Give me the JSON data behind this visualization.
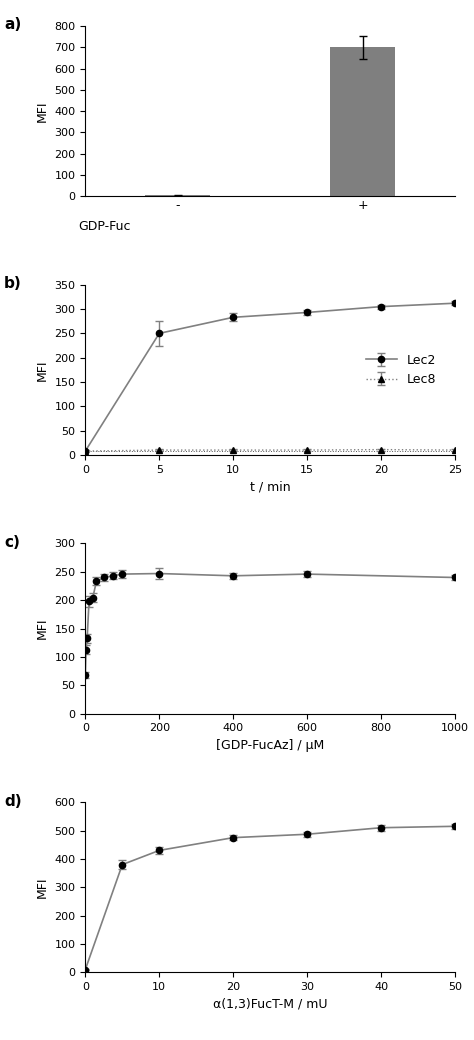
{
  "panel_a": {
    "categories": [
      "-",
      "+"
    ],
    "values": [
      5,
      700
    ],
    "errors": [
      2,
      55
    ],
    "bar_color": "#7f7f7f",
    "ylabel": "MFI",
    "xlabel_label": "GDP-Fuc",
    "ylim": [
      0,
      800
    ],
    "yticks": [
      0,
      100,
      200,
      300,
      400,
      500,
      600,
      700,
      800
    ],
    "bar_positions": [
      1,
      3
    ],
    "xlim": [
      0,
      4
    ]
  },
  "panel_b": {
    "lec2_x": [
      0,
      5,
      10,
      15,
      20,
      25
    ],
    "lec2_y": [
      8,
      250,
      283,
      293,
      305,
      312
    ],
    "lec2_err": [
      2,
      25,
      8,
      5,
      4,
      4
    ],
    "lec8_x": [
      0,
      5,
      10,
      15,
      20,
      25
    ],
    "lec8_y": [
      8,
      10,
      10,
      10,
      11,
      10
    ],
    "lec8_err": [
      2,
      2,
      2,
      2,
      2,
      2
    ],
    "ylabel": "MFI",
    "xlabel": "t / min",
    "ylim": [
      0,
      350
    ],
    "yticks": [
      0,
      50,
      100,
      150,
      200,
      250,
      300,
      350
    ],
    "xlim": [
      0,
      25
    ],
    "xticks": [
      0,
      5,
      10,
      15,
      20,
      25
    ],
    "line_color": "#808080",
    "marker_color": "#000000",
    "legend_labels": [
      "Lec2",
      "Lec8"
    ]
  },
  "panel_c": {
    "x": [
      0,
      2,
      5,
      10,
      20,
      30,
      50,
      75,
      100,
      200,
      400,
      600,
      1000
    ],
    "y": [
      68,
      113,
      133,
      198,
      204,
      233,
      240,
      243,
      246,
      247,
      243,
      246,
      240
    ],
    "err": [
      5,
      8,
      8,
      10,
      8,
      7,
      6,
      6,
      7,
      10,
      5,
      5,
      5
    ],
    "ylabel": "MFI",
    "xlabel": "[GDP-FucAz] / μM",
    "ylim": [
      0,
      300
    ],
    "yticks": [
      0,
      50,
      100,
      150,
      200,
      250,
      300
    ],
    "xlim": [
      0,
      1000
    ],
    "xticks": [
      0,
      200,
      400,
      600,
      800,
      1000
    ],
    "line_color": "#808080",
    "marker_color": "#000000"
  },
  "panel_d": {
    "x": [
      0,
      5,
      10,
      20,
      30,
      40,
      50
    ],
    "y": [
      10,
      380,
      430,
      475,
      487,
      510,
      515
    ],
    "err": [
      3,
      15,
      12,
      8,
      8,
      10,
      8
    ],
    "ylabel": "MFI",
    "xlabel": "α(1,3)FucT-M / mU",
    "ylim": [
      0,
      600
    ],
    "yticks": [
      0,
      100,
      200,
      300,
      400,
      500,
      600
    ],
    "xlim": [
      0,
      50
    ],
    "xticks": [
      0,
      10,
      20,
      30,
      40,
      50
    ],
    "line_color": "#808080",
    "marker_color": "#000000"
  },
  "panel_labels": [
    "a)",
    "b)",
    "c)",
    "d)"
  ],
  "label_fontsize": 11,
  "axis_fontsize": 9,
  "tick_fontsize": 8
}
